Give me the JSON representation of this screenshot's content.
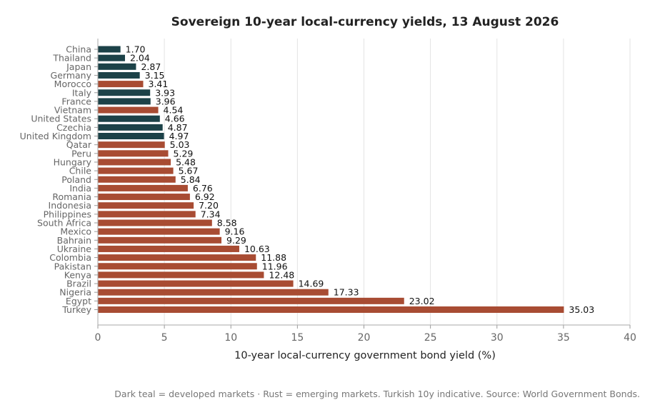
{
  "chart_data": {
    "type": "bar",
    "orientation": "horizontal",
    "title": "Sovereign 10-year local-currency yields, 13 August 2026",
    "xlabel": "10-year local-currency government bond yield (%)",
    "ylabel": "",
    "xlim": [
      0,
      40
    ],
    "xticks": [
      0,
      5,
      10,
      15,
      20,
      25,
      30,
      35,
      40
    ],
    "grid": "vertical",
    "footnote": "Dark teal = developed markets · Rust = emerging markets. Turkish 10y indicative. Source: World Government Bonds.",
    "colors": {
      "developed": "#1c4248",
      "emerging": "#a84c33"
    },
    "bars": [
      {
        "category": "China",
        "value": 1.7,
        "group": "developed"
      },
      {
        "category": "Thailand",
        "value": 2.04,
        "group": "developed"
      },
      {
        "category": "Japan",
        "value": 2.87,
        "group": "developed"
      },
      {
        "category": "Germany",
        "value": 3.15,
        "group": "developed"
      },
      {
        "category": "Morocco",
        "value": 3.41,
        "group": "emerging"
      },
      {
        "category": "Italy",
        "value": 3.93,
        "group": "developed"
      },
      {
        "category": "France",
        "value": 3.96,
        "group": "developed"
      },
      {
        "category": "Vietnam",
        "value": 4.54,
        "group": "emerging"
      },
      {
        "category": "United States",
        "value": 4.66,
        "group": "developed"
      },
      {
        "category": "Czechia",
        "value": 4.87,
        "group": "developed"
      },
      {
        "category": "United Kingdom",
        "value": 4.97,
        "group": "developed"
      },
      {
        "category": "Qatar",
        "value": 5.03,
        "group": "emerging"
      },
      {
        "category": "Peru",
        "value": 5.29,
        "group": "emerging"
      },
      {
        "category": "Hungary",
        "value": 5.48,
        "group": "emerging"
      },
      {
        "category": "Chile",
        "value": 5.67,
        "group": "emerging"
      },
      {
        "category": "Poland",
        "value": 5.84,
        "group": "emerging"
      },
      {
        "category": "India",
        "value": 6.76,
        "group": "emerging"
      },
      {
        "category": "Romania",
        "value": 6.92,
        "group": "emerging"
      },
      {
        "category": "Indonesia",
        "value": 7.2,
        "group": "emerging"
      },
      {
        "category": "Philippines",
        "value": 7.34,
        "group": "emerging"
      },
      {
        "category": "South Africa",
        "value": 8.58,
        "group": "emerging"
      },
      {
        "category": "Mexico",
        "value": 9.16,
        "group": "emerging"
      },
      {
        "category": "Bahrain",
        "value": 9.29,
        "group": "emerging"
      },
      {
        "category": "Ukraine",
        "value": 10.63,
        "group": "emerging"
      },
      {
        "category": "Colombia",
        "value": 11.88,
        "group": "emerging"
      },
      {
        "category": "Pakistan",
        "value": 11.96,
        "group": "emerging"
      },
      {
        "category": "Kenya",
        "value": 12.48,
        "group": "emerging"
      },
      {
        "category": "Brazil",
        "value": 14.69,
        "group": "emerging"
      },
      {
        "category": "Nigeria",
        "value": 17.33,
        "group": "emerging"
      },
      {
        "category": "Egypt",
        "value": 23.02,
        "group": "emerging"
      },
      {
        "category": "Turkey",
        "value": 35.03,
        "group": "emerging"
      }
    ]
  }
}
